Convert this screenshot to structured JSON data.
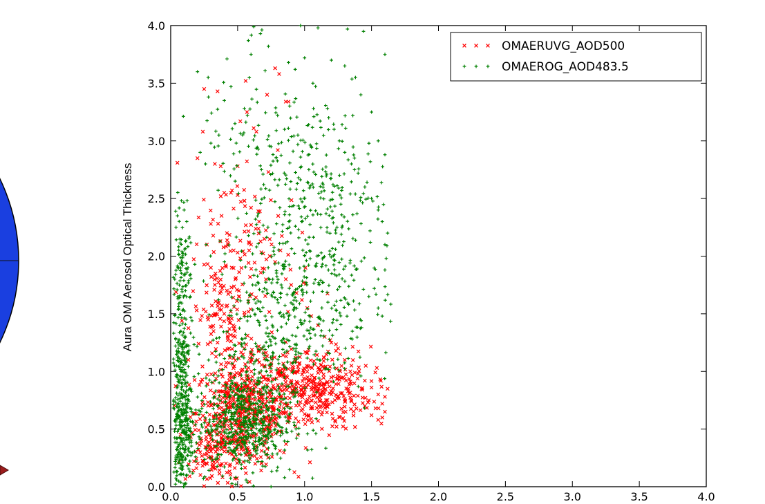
{
  "colors": {
    "series1": "#ff0000",
    "series2": "#008000",
    "globe": "#1a3fe0",
    "arrow": "#9b1c1c"
  },
  "chart_data": {
    "type": "scatter",
    "title": "",
    "xlabel": "",
    "ylabel": "Aura OMI Aerosol Optical Thickness",
    "xlim": [
      0.0,
      4.0
    ],
    "ylim": [
      0.0,
      4.0
    ],
    "xticks": [
      "0.0",
      "0.5",
      "1.0",
      "1.5",
      "2.0",
      "2.5",
      "3.0",
      "3.5",
      "4.0"
    ],
    "yticks": [
      "0.0",
      "0.5",
      "1.0",
      "1.5",
      "2.0",
      "2.5",
      "3.0",
      "3.5",
      "4.0"
    ],
    "grid": false,
    "legend_position": "top-right",
    "series": [
      {
        "name": "OMAERUVG_AOD500",
        "marker": "x",
        "color": "#ff0000",
        "points": [
          [
            0.05,
            2.81
          ],
          [
            0.25,
            3.45
          ],
          [
            0.24,
            3.08
          ],
          [
            0.35,
            3.43
          ],
          [
            0.56,
            3.52
          ],
          [
            0.57,
            3.25
          ],
          [
            0.72,
            3.4
          ],
          [
            0.78,
            3.63
          ],
          [
            0.81,
            3.58
          ],
          [
            0.52,
            3.17
          ],
          [
            0.64,
            3.08
          ],
          [
            0.8,
            2.92
          ],
          [
            0.86,
            3.34
          ],
          [
            0.88,
            3.34
          ],
          [
            0.62,
            3.11
          ],
          [
            0.73,
            2.73
          ],
          [
            0.5,
            2.78
          ],
          [
            0.33,
            2.8
          ],
          [
            0.2,
            2.85
          ],
          [
            0.4,
            2.55
          ],
          [
            0.45,
            2.55
          ],
          [
            0.5,
            2.53
          ],
          [
            0.55,
            2.48
          ],
          [
            0.6,
            2.42
          ],
          [
            0.38,
            2.35
          ],
          [
            0.3,
            2.28
          ],
          [
            0.27,
            2.1
          ],
          [
            0.42,
            2.2
          ],
          [
            0.47,
            2.05
          ],
          [
            0.52,
            1.98
          ],
          [
            0.6,
            2.1
          ],
          [
            0.66,
            2.3
          ],
          [
            0.7,
            2.15
          ],
          [
            0.74,
            2.0
          ],
          [
            0.78,
            1.95
          ],
          [
            0.82,
            2.05
          ],
          [
            0.86,
            1.8
          ],
          [
            0.9,
            1.75
          ],
          [
            0.94,
            1.68
          ],
          [
            0.98,
            1.62
          ],
          [
            1.02,
            1.55
          ],
          [
            1.05,
            1.48
          ],
          [
            1.1,
            1.4
          ],
          [
            1.15,
            1.3
          ],
          [
            1.2,
            1.25
          ],
          [
            1.25,
            1.2
          ],
          [
            1.3,
            1.1
          ],
          [
            1.35,
            1.05
          ],
          [
            1.4,
            0.98
          ],
          [
            1.45,
            0.92
          ],
          [
            1.5,
            0.86
          ],
          [
            1.55,
            0.8
          ],
          [
            1.58,
            0.72
          ],
          [
            1.6,
            0.65
          ],
          [
            1.55,
            0.58
          ],
          [
            1.5,
            0.62
          ],
          [
            1.45,
            0.7
          ],
          [
            1.62,
            0.85
          ],
          [
            1.6,
            0.78
          ],
          [
            1.58,
            0.6
          ],
          [
            1.53,
            0.68
          ],
          [
            1.48,
            0.75
          ],
          [
            0.3,
            1.9
          ],
          [
            0.33,
            1.75
          ],
          [
            0.36,
            1.6
          ],
          [
            0.4,
            1.5
          ],
          [
            0.44,
            1.42
          ],
          [
            0.48,
            1.3
          ],
          [
            0.55,
            1.2
          ],
          [
            0.6,
            1.15
          ],
          [
            0.65,
            1.1
          ],
          [
            0.7,
            1.05
          ],
          [
            0.75,
            1.0
          ],
          [
            0.8,
            0.98
          ],
          [
            0.85,
            0.95
          ],
          [
            0.9,
            0.92
          ],
          [
            0.95,
            0.9
          ],
          [
            1.0,
            0.88
          ],
          [
            1.05,
            0.86
          ],
          [
            1.1,
            0.84
          ],
          [
            1.15,
            0.82
          ],
          [
            1.2,
            0.8
          ],
          [
            1.25,
            0.78
          ],
          [
            1.3,
            0.76
          ],
          [
            1.35,
            0.74
          ],
          [
            0.28,
            1.45
          ],
          [
            0.32,
            1.35
          ],
          [
            0.35,
            1.25
          ],
          [
            0.38,
            1.15
          ]
        ],
        "clusters": [
          {
            "cx": 0.55,
            "cy": 0.65,
            "sx": 0.18,
            "sy": 0.22,
            "n": 520
          },
          {
            "cx": 1.05,
            "cy": 0.85,
            "sx": 0.22,
            "sy": 0.18,
            "n": 380
          },
          {
            "cx": 0.4,
            "cy": 1.55,
            "sx": 0.12,
            "sy": 0.35,
            "n": 140
          },
          {
            "cx": 0.65,
            "cy": 2.05,
            "sx": 0.2,
            "sy": 0.35,
            "n": 70
          },
          {
            "cx": 0.35,
            "cy": 0.25,
            "sx": 0.12,
            "sy": 0.15,
            "n": 120
          }
        ]
      },
      {
        "name": "OMAEROG_AOD483.5",
        "marker": "+",
        "color": "#008000",
        "points": [
          [
            0.62,
            3.99
          ],
          [
            0.67,
            3.93
          ],
          [
            0.58,
            3.87
          ],
          [
            0.73,
            3.82
          ],
          [
            0.6,
            3.75
          ],
          [
            0.88,
            3.68
          ],
          [
            0.97,
            4.0
          ],
          [
            1.1,
            3.98
          ],
          [
            1.32,
            3.97
          ],
          [
            1.44,
            3.95
          ],
          [
            1.6,
            3.75
          ],
          [
            1.0,
            3.72
          ],
          [
            0.93,
            3.62
          ],
          [
            0.2,
            3.6
          ],
          [
            0.28,
            3.55
          ],
          [
            0.45,
            3.47
          ],
          [
            0.4,
            3.35
          ],
          [
            0.55,
            3.28
          ],
          [
            0.48,
            3.15
          ],
          [
            0.36,
            3.05
          ],
          [
            0.3,
            2.98
          ],
          [
            0.22,
            2.9
          ],
          [
            0.26,
            2.8
          ],
          [
            1.18,
            3.2
          ],
          [
            1.22,
            3.1
          ],
          [
            1.26,
            3.0
          ],
          [
            1.3,
            2.9
          ],
          [
            1.35,
            2.8
          ],
          [
            1.4,
            2.72
          ],
          [
            1.45,
            2.6
          ],
          [
            1.5,
            2.5
          ],
          [
            1.55,
            2.4
          ],
          [
            1.58,
            2.3
          ],
          [
            1.62,
            2.2
          ],
          [
            1.6,
            2.1
          ],
          [
            1.61,
            1.98
          ],
          [
            1.6,
            1.88
          ],
          [
            1.55,
            1.8
          ],
          [
            1.52,
            1.72
          ],
          [
            1.48,
            1.65
          ],
          [
            1.55,
            1.55
          ],
          [
            1.58,
            1.48
          ],
          [
            0.05,
            2.35
          ],
          [
            0.08,
            2.48
          ],
          [
            0.04,
            2.25
          ],
          [
            0.1,
            2.4
          ],
          [
            0.12,
            2.3
          ],
          [
            0.06,
            2.05
          ],
          [
            0.09,
            1.92
          ],
          [
            0.03,
            1.8
          ],
          [
            0.11,
            1.7
          ],
          [
            0.07,
            1.6
          ],
          [
            1.6,
            2.88
          ],
          [
            1.55,
            3.0
          ],
          [
            1.5,
            3.25
          ],
          [
            1.42,
            3.4
          ],
          [
            1.38,
            3.55
          ],
          [
            1.2,
            3.7
          ],
          [
            1.3,
            3.65
          ],
          [
            0.85,
            3.1
          ],
          [
            0.95,
            3.05
          ],
          [
            1.05,
            2.95
          ],
          [
            0.75,
            2.95
          ]
        ],
        "clusters": [
          {
            "cx": 0.55,
            "cy": 0.55,
            "sx": 0.18,
            "sy": 0.22,
            "n": 560
          },
          {
            "cx": 0.08,
            "cy": 0.55,
            "sx": 0.04,
            "sy": 0.4,
            "n": 380
          },
          {
            "cx": 0.08,
            "cy": 1.6,
            "sx": 0.04,
            "sy": 0.45,
            "n": 160
          },
          {
            "cx": 1.0,
            "cy": 1.7,
            "sx": 0.25,
            "sy": 0.45,
            "n": 330
          },
          {
            "cx": 1.15,
            "cy": 2.45,
            "sx": 0.25,
            "sy": 0.4,
            "n": 170
          },
          {
            "cx": 0.8,
            "cy": 2.8,
            "sx": 0.3,
            "sy": 0.45,
            "n": 120
          },
          {
            "cx": 0.65,
            "cy": 1.2,
            "sx": 0.25,
            "sy": 0.3,
            "n": 200
          }
        ]
      }
    ]
  }
}
